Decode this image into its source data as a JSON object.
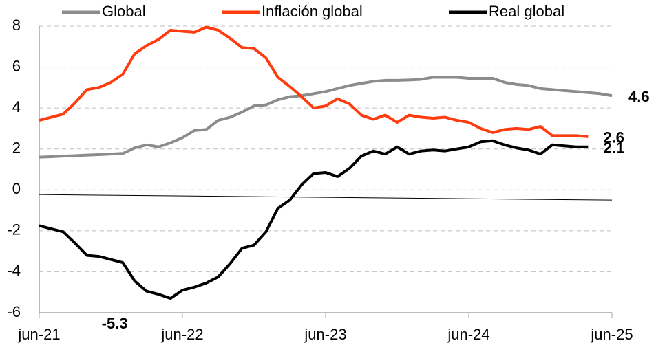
{
  "chart_data": {
    "type": "line",
    "categories": [
      "jun-21",
      null,
      null,
      null,
      null,
      null,
      null,
      null,
      null,
      null,
      null,
      null,
      "jun-22",
      null,
      null,
      null,
      null,
      null,
      null,
      null,
      null,
      null,
      null,
      null,
      "jun-23",
      null,
      null,
      null,
      null,
      null,
      null,
      null,
      null,
      null,
      null,
      null,
      "jun-24",
      null,
      null,
      null,
      null,
      null,
      null,
      null,
      null,
      null,
      null,
      null,
      "jun-25"
    ],
    "series": [
      {
        "name": "Global",
        "color": "#8c8c8c",
        "values": [
          1.6,
          1.62,
          1.65,
          1.67,
          1.7,
          1.72,
          1.75,
          1.78,
          2.05,
          2.2,
          2.1,
          2.3,
          2.55,
          2.9,
          2.95,
          3.4,
          3.55,
          3.8,
          4.1,
          4.15,
          4.4,
          4.55,
          4.6,
          4.7,
          4.8,
          4.95,
          5.1,
          5.2,
          5.3,
          5.35,
          5.35,
          5.37,
          5.4,
          5.5,
          5.5,
          5.5,
          5.45,
          5.45,
          5.45,
          5.25,
          5.15,
          5.1,
          4.95,
          4.9,
          4.85,
          4.8,
          4.75,
          4.7,
          4.6
        ],
        "value_labels": [
          null,
          null,
          null,
          null,
          null,
          null,
          null,
          null,
          null,
          null,
          null,
          null,
          null,
          null,
          null,
          null,
          null,
          null,
          null,
          null,
          null,
          null,
          null,
          null,
          null,
          null,
          null,
          null,
          null,
          null,
          null,
          null,
          null,
          null,
          null,
          null,
          null,
          null,
          null,
          null,
          null,
          null,
          null,
          null,
          null,
          null,
          null,
          null,
          "4.6"
        ]
      },
      {
        "name": "Inflación global",
        "color": "#ff3c0f",
        "values": [
          3.4,
          3.55,
          3.7,
          4.25,
          4.9,
          5.0,
          5.25,
          5.65,
          6.65,
          7.05,
          7.35,
          7.8,
          7.75,
          7.7,
          7.95,
          7.8,
          7.4,
          6.95,
          6.9,
          6.45,
          5.5,
          5.05,
          4.55,
          4.0,
          4.1,
          4.45,
          4.2,
          3.65,
          3.45,
          3.65,
          3.3,
          3.65,
          3.55,
          3.5,
          3.55,
          3.4,
          3.3,
          3.0,
          2.8,
          2.95,
          3.0,
          2.95,
          3.1,
          2.65,
          2.65,
          2.65,
          2.6,
          null,
          null
        ],
        "value_labels": [
          null,
          null,
          null,
          null,
          null,
          null,
          null,
          null,
          null,
          null,
          null,
          null,
          null,
          null,
          null,
          null,
          null,
          null,
          null,
          null,
          null,
          null,
          null,
          null,
          null,
          null,
          null,
          null,
          null,
          null,
          null,
          null,
          null,
          null,
          null,
          null,
          null,
          null,
          null,
          null,
          null,
          null,
          null,
          null,
          null,
          null,
          "2.6",
          null,
          null
        ]
      },
      {
        "name": "Real global",
        "color": "#000000",
        "values": [
          -1.75,
          -1.9,
          -2.05,
          -2.6,
          -3.2,
          -3.25,
          -3.4,
          -3.55,
          -4.45,
          -4.95,
          -5.1,
          -5.3,
          -4.9,
          -4.75,
          -4.55,
          -4.25,
          -3.6,
          -2.85,
          -2.7,
          -2.05,
          -0.9,
          -0.5,
          0.25,
          0.8,
          0.85,
          0.65,
          1.05,
          1.65,
          1.9,
          1.75,
          2.1,
          1.75,
          1.9,
          1.95,
          1.9,
          2.0,
          2.1,
          2.35,
          2.4,
          2.2,
          2.05,
          1.95,
          1.75,
          2.2,
          2.15,
          2.1,
          2.1,
          null,
          null
        ],
        "value_labels": [
          null,
          null,
          null,
          null,
          null,
          null,
          null,
          null,
          null,
          null,
          null,
          "-5.3",
          null,
          null,
          null,
          null,
          null,
          null,
          null,
          null,
          null,
          null,
          null,
          null,
          null,
          null,
          null,
          null,
          null,
          null,
          null,
          null,
          null,
          null,
          null,
          null,
          null,
          null,
          null,
          null,
          null,
          null,
          null,
          null,
          null,
          null,
          "2.1",
          null,
          null
        ]
      }
    ],
    "trend_line": {
      "color": "#000000",
      "values": [
        -0.23,
        -0.5
      ]
    },
    "ylim": [
      -6,
      8
    ],
    "yticks": [
      -6,
      -4,
      -2,
      0,
      2,
      4,
      6,
      8
    ],
    "grid": true,
    "legend": "top"
  }
}
